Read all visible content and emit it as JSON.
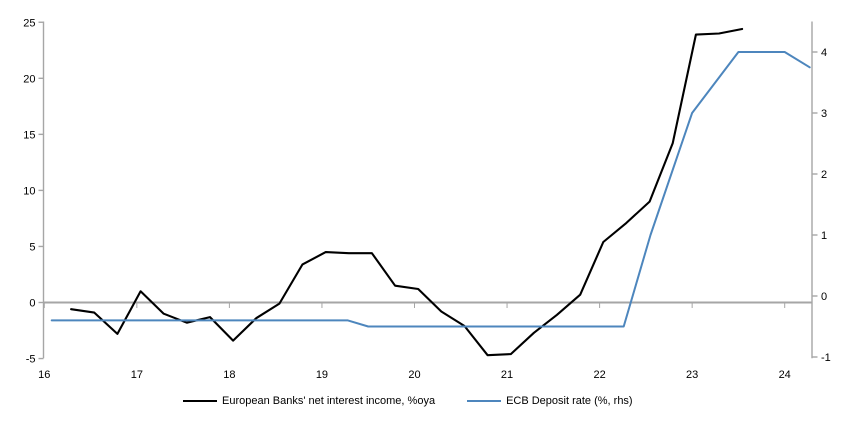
{
  "chart_data": {
    "type": "line",
    "title": "",
    "x_axis": {
      "ticks": [
        16,
        17,
        18,
        19,
        20,
        21,
        22,
        23,
        24
      ],
      "range": [
        16,
        24.3
      ],
      "gridlines": false
    },
    "left_axis": {
      "ticks": [
        -5,
        0,
        5,
        10,
        15,
        20,
        25
      ],
      "range": [
        -5,
        25
      ],
      "gridlines": false,
      "zero_line": true
    },
    "right_axis": {
      "ticks": [
        -1,
        0,
        1,
        2,
        3,
        4
      ],
      "range": [
        -1,
        4.5
      ],
      "gridlines": false
    },
    "legend_position": "bottom",
    "series": [
      {
        "id": "nii",
        "name": "European Banks' net interest income, %oya",
        "color": "#000000",
        "axis": "left",
        "line_width": 2.1,
        "points": [
          [
            16.29,
            -0.6
          ],
          [
            16.54,
            -0.9
          ],
          [
            16.79,
            -2.8
          ],
          [
            17.04,
            1.0
          ],
          [
            17.29,
            -1.0
          ],
          [
            17.54,
            -1.8
          ],
          [
            17.79,
            -1.3
          ],
          [
            18.04,
            -3.4
          ],
          [
            18.29,
            -1.4
          ],
          [
            18.54,
            -0.1
          ],
          [
            18.79,
            3.4
          ],
          [
            19.04,
            4.5
          ],
          [
            19.29,
            4.4
          ],
          [
            19.54,
            4.4
          ],
          [
            19.79,
            1.5
          ],
          [
            20.04,
            1.2
          ],
          [
            20.29,
            -0.8
          ],
          [
            20.54,
            -2.1
          ],
          [
            20.79,
            -4.7
          ],
          [
            21.04,
            -4.6
          ],
          [
            21.29,
            -2.7
          ],
          [
            21.54,
            -1.1
          ],
          [
            21.79,
            0.7
          ],
          [
            22.04,
            5.4
          ],
          [
            22.29,
            7.1
          ],
          [
            22.54,
            9.0
          ],
          [
            22.79,
            14.2
          ],
          [
            23.04,
            23.9
          ],
          [
            23.29,
            24.0
          ],
          [
            23.54,
            24.4
          ]
        ]
      },
      {
        "id": "ecb-deposit-rate",
        "name": "ECB Deposit rate (%, rhs)",
        "color": "#4D86BD",
        "axis": "right",
        "line_width": 2,
        "points": [
          [
            16.08,
            -0.4
          ],
          [
            19.28,
            -0.4
          ],
          [
            19.5,
            -0.5
          ],
          [
            22.26,
            -0.5
          ],
          [
            22.55,
            1.0
          ],
          [
            23.0,
            3.0
          ],
          [
            23.5,
            4.0
          ],
          [
            24.0,
            4.0
          ],
          [
            24.27,
            3.75
          ]
        ]
      }
    ]
  },
  "colors": {
    "axis": "#A6A6A6",
    "zero_line": "#A6A6A6",
    "text": "#000000",
    "background": "#FFFFFF",
    "series_black": "#000000",
    "series_blue": "#4D86BD"
  }
}
